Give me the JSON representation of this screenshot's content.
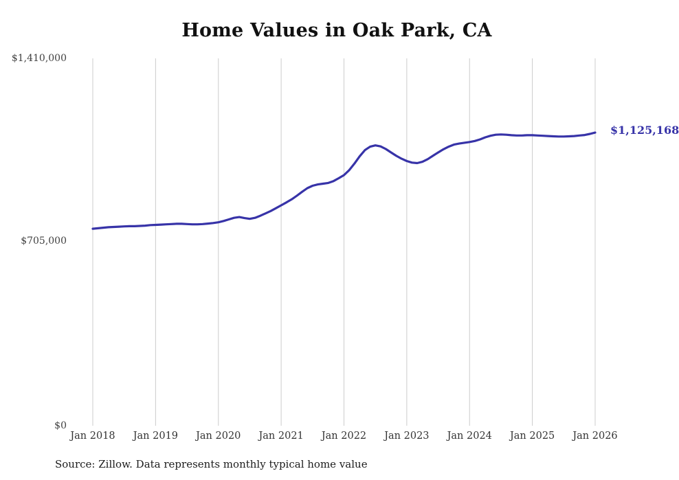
{
  "chart_data": {
    "type": "line",
    "title": "Home Values in Oak Park, CA",
    "x_frequency": "monthly",
    "x_start": "2018-01",
    "x_end": "2026-01",
    "series_by_year": [
      {
        "year": 2018,
        "monthly_values": [
          756000,
          758000,
          760000,
          762000,
          763000,
          764000,
          765000,
          766000,
          766000,
          767000,
          768000,
          770000
        ]
      },
      {
        "year": 2019,
        "monthly_values": [
          771000,
          772000,
          773000,
          774000,
          775000,
          775000,
          774000,
          773000,
          773000,
          774000,
          776000,
          778000
        ]
      },
      {
        "year": 2020,
        "monthly_values": [
          781000,
          786000,
          792000,
          798000,
          801000,
          797000,
          794000,
          798000,
          806000,
          815000,
          824000,
          835000
        ]
      },
      {
        "year": 2021,
        "monthly_values": [
          846000,
          857000,
          869000,
          883000,
          898000,
          912000,
          921000,
          926000,
          929000,
          932000,
          939000,
          950000
        ]
      },
      {
        "year": 2022,
        "monthly_values": [
          962000,
          981000,
          1006000,
          1034000,
          1058000,
          1071000,
          1076000,
          1072000,
          1062000,
          1049000,
          1036000,
          1025000
        ]
      },
      {
        "year": 2023,
        "monthly_values": [
          1016000,
          1010000,
          1008000,
          1013000,
          1023000,
          1036000,
          1049000,
          1061000,
          1071000,
          1079000,
          1083000,
          1086000
        ]
      },
      {
        "year": 2024,
        "monthly_values": [
          1089000,
          1093000,
          1099000,
          1107000,
          1113000,
          1117000,
          1118000,
          1117000,
          1115000,
          1114000,
          1114000,
          1115000
        ]
      },
      {
        "year": 2025,
        "monthly_values": [
          1115000,
          1114000,
          1113000,
          1112000,
          1111000,
          1110000,
          1110000,
          1111000,
          1112000,
          1114000,
          1116000,
          1120000
        ]
      },
      {
        "year": 2026,
        "monthly_values": [
          1125168
        ]
      }
    ],
    "x_tick_labels": [
      "Jan 2018",
      "Jan 2019",
      "Jan 2020",
      "Jan 2021",
      "Jan 2022",
      "Jan 2023",
      "Jan 2024",
      "Jan 2025",
      "Jan 2026"
    ],
    "y_ticks": [
      {
        "value": 1410000,
        "label": "$1,410,000"
      },
      {
        "value": 705000,
        "label": "$705,000"
      },
      {
        "value": 0,
        "label": "$0"
      }
    ],
    "ylim": [
      0,
      1410000
    ],
    "end_label": "$1,125,168",
    "line_color": "#3733a8",
    "grid": "vertical-only",
    "legend": "none",
    "source_note": "Source: Zillow. Data represents monthly typical home value"
  }
}
